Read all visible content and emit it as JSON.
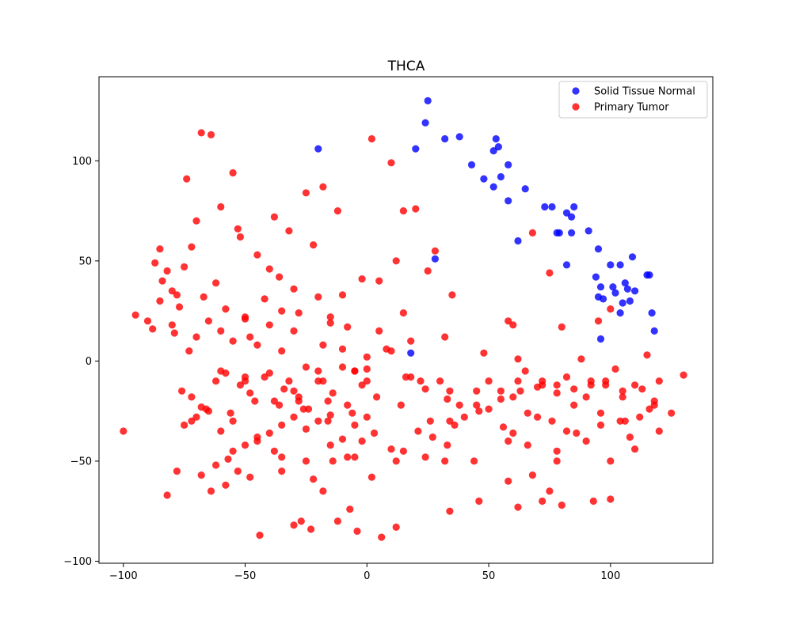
{
  "chart_data": {
    "type": "scatter",
    "title": "THCA",
    "xlabel": "",
    "ylabel": "",
    "xlim": [
      -110,
      142
    ],
    "ylim": [
      -101,
      142
    ],
    "xticks": [
      -100,
      -50,
      0,
      50,
      100
    ],
    "yticks": [
      -100,
      -50,
      0,
      50,
      100
    ],
    "grid": false,
    "legend_position": "top-right",
    "series": [
      {
        "name": "Solid Tissue Normal",
        "color": "#0000ff",
        "x": [
          -20,
          20,
          24,
          25,
          32,
          38,
          43,
          48,
          52,
          52,
          53,
          54,
          55,
          58,
          58,
          62,
          65,
          73,
          76,
          78,
          79,
          82,
          82,
          84,
          84,
          85,
          91,
          94,
          95,
          96,
          96,
          95,
          97,
          100,
          101,
          102,
          104,
          104,
          105,
          106,
          107,
          108,
          109,
          110,
          115,
          116,
          117,
          118,
          28,
          18
        ],
        "y": [
          106,
          106,
          119,
          130,
          111,
          112,
          98,
          91,
          87,
          105,
          111,
          107,
          92,
          98,
          80,
          60,
          86,
          77,
          77,
          64,
          64,
          74,
          48,
          72,
          64,
          77,
          65,
          42,
          56,
          37,
          11,
          32,
          31,
          48,
          37,
          34,
          48,
          24,
          29,
          39,
          36,
          30,
          52,
          35,
          43,
          43,
          24,
          15,
          51,
          4
        ]
      },
      {
        "name": "Primary Tumor",
        "color": "#ff0000",
        "x": [
          -100,
          -95,
          -88,
          -87,
          -85,
          -84,
          -82,
          -80,
          -79,
          -78,
          -77,
          -76,
          -75,
          -74,
          -73,
          -72,
          -70,
          -68,
          -67,
          -64,
          -62,
          -60,
          -58,
          -55,
          -53,
          -50,
          -48,
          -45,
          -42,
          -40,
          -38,
          -36,
          -35,
          -32,
          -30,
          -28,
          -25,
          -22,
          -20,
          -18,
          -15,
          -12,
          -10,
          -8,
          -5,
          -2,
          0,
          2,
          5,
          8,
          10,
          12,
          15,
          18,
          20,
          22,
          25,
          28,
          30,
          32,
          35,
          38,
          40,
          45,
          48,
          50,
          55,
          58,
          60,
          62,
          65,
          68,
          70,
          72,
          75,
          78,
          80,
          82,
          85,
          88,
          90,
          92,
          95,
          98,
          100,
          102,
          105,
          108,
          110,
          112,
          115,
          118,
          120,
          125,
          130,
          -90,
          -85,
          -80,
          -70,
          -65,
          -60,
          -55,
          -50,
          -45,
          -40,
          -35,
          -30,
          -25,
          -20,
          -15,
          -10,
          -5,
          0,
          5,
          10,
          15,
          -75,
          -70,
          -65,
          -60,
          -55,
          -50,
          -45,
          -40,
          -35,
          -30,
          -25,
          -20,
          -15,
          -10,
          -5,
          0,
          3,
          -68,
          -64,
          -57,
          -53,
          -38,
          -35,
          -22,
          -18,
          -14,
          2,
          12,
          15,
          21,
          27,
          33,
          -62,
          -58,
          -48,
          -44,
          -30,
          -27,
          -23,
          -12,
          -7,
          -4,
          6,
          12,
          34,
          46,
          58,
          62,
          68,
          75,
          80,
          93,
          100,
          -82,
          -78,
          -72,
          -68,
          -62,
          -58,
          -52,
          -48,
          -42,
          -38,
          -34,
          -28,
          -24,
          -18,
          -14,
          -8,
          -2,
          4,
          18,
          24,
          33,
          45,
          50,
          55,
          63,
          72,
          78,
          85,
          92,
          98,
          105,
          113,
          -66,
          -56,
          -46,
          -36,
          -26,
          -16,
          -6,
          14,
          26,
          36,
          56,
          66,
          76,
          86,
          96,
          106,
          116,
          -60,
          -50,
          -40,
          -30,
          -20,
          -10,
          0,
          16,
          34,
          46,
          60,
          70,
          82,
          96,
          104,
          118,
          -55,
          -45,
          -35,
          -25,
          -15,
          -5,
          10,
          24,
          44,
          58,
          66,
          78,
          90,
          100,
          110,
          120,
          -72,
          -52,
          -32,
          -18,
          -8,
          32,
          62,
          72,
          -50,
          -28,
          -16,
          -2,
          34,
          60,
          78
        ],
        "y": [
          -35,
          23,
          16,
          49,
          56,
          40,
          45,
          35,
          14,
          33,
          27,
          -15,
          47,
          91,
          5,
          -30,
          70,
          114,
          32,
          113,
          39,
          77,
          26,
          94,
          66,
          21,
          12,
          53,
          31,
          46,
          72,
          42,
          25,
          -10,
          36,
          24,
          84,
          58,
          32,
          87,
          19,
          75,
          33,
          17,
          -5,
          41,
          -10,
          111,
          40,
          6,
          99,
          50,
          75,
          10,
          76,
          -10,
          45,
          55,
          -10,
          12,
          33,
          -22,
          -28,
          -15,
          4,
          -10,
          -15,
          20,
          18,
          1,
          -5,
          64,
          -13,
          -10,
          44,
          -12,
          17,
          -8,
          -22,
          1,
          -18,
          -12,
          20,
          -10,
          26,
          -4,
          -15,
          -38,
          -12,
          -28,
          3,
          -22,
          -10,
          -26,
          -7,
          20,
          30,
          18,
          12,
          20,
          15,
          10,
          22,
          8,
          18,
          5,
          15,
          -3,
          -5,
          22,
          6,
          -5,
          2,
          15,
          5,
          24,
          -32,
          -28,
          -25,
          -35,
          -30,
          -42,
          -38,
          -36,
          -32,
          -28,
          -34,
          -30,
          -27,
          -39,
          -32,
          -28,
          -36,
          -57,
          -65,
          -49,
          -55,
          -45,
          -55,
          -59,
          -65,
          -50,
          -58,
          -50,
          -45,
          -35,
          -38,
          -42,
          -52,
          -62,
          -58,
          -87,
          -82,
          -80,
          -84,
          -80,
          -74,
          -85,
          -88,
          -83,
          -75,
          -70,
          -60,
          -73,
          -57,
          -65,
          -72,
          -70,
          -69,
          -67,
          -55,
          -18,
          -23,
          -10,
          -6,
          -12,
          -16,
          -8,
          -20,
          -14,
          -18,
          -24,
          -10,
          -16,
          -22,
          -12,
          -18,
          -8,
          -14,
          -19,
          -22,
          -24,
          -19,
          -15,
          -12,
          -16,
          -14,
          -10,
          -12,
          -18,
          -14,
          -24,
          -26,
          -20,
          -22,
          -24,
          -20,
          -26,
          -22,
          -30,
          -32,
          -33,
          -26,
          -30,
          -36,
          -32,
          -30,
          -24,
          -5,
          -8,
          -6,
          -15,
          -10,
          -3,
          -4,
          -8,
          -15,
          -25,
          -18,
          -28,
          -35,
          -26,
          -30,
          -20,
          -45,
          -40,
          -48,
          -50,
          -42,
          -48,
          -44,
          -48,
          -50,
          -40,
          -42,
          -45,
          -40,
          -50,
          -44,
          -35,
          57,
          62,
          65,
          8,
          -48,
          -50,
          -10,
          -70,
          -10,
          -20,
          -30,
          -40,
          -30,
          -36,
          -50
        ]
      }
    ]
  }
}
